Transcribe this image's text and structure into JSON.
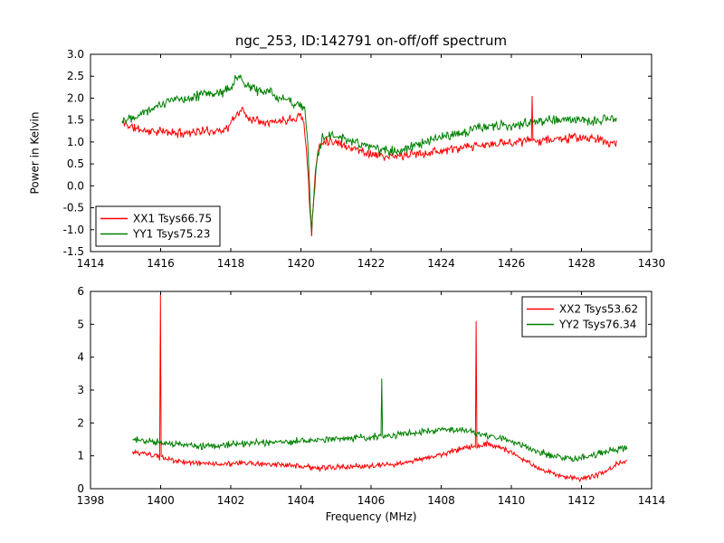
{
  "figure": {
    "background": "#ffffff",
    "frame_color": "#000000"
  },
  "chart_data": [
    {
      "type": "line",
      "title": "ngc_253, ID:142791 on-off/off spectrum",
      "xlabel": "",
      "ylabel": "Power in Kelvin",
      "xlim": [
        1414,
        1430
      ],
      "ylim": [
        -1.5,
        3.0
      ],
      "xticks": [
        1414,
        1416,
        1418,
        1420,
        1422,
        1424,
        1426,
        1428,
        1430
      ],
      "xtick_labels": [
        "1414",
        "1416",
        "1418",
        "1420",
        "1422",
        "1424",
        "1426",
        "1428",
        "1430"
      ],
      "yticks": [
        3.0,
        2.5,
        2.0,
        1.5,
        1.0,
        0.5,
        0.0,
        -0.5,
        -1.0,
        -1.5
      ],
      "ytick_labels": [
        "3.0",
        "2.5",
        "2.0",
        "1.5",
        "1.0",
        "0.5",
        "0.0",
        "-0.5",
        "-1.0",
        "-1.5"
      ],
      "legend_position": "lower left",
      "grid": false,
      "series": [
        {
          "name": "XX1 Tsys66.75",
          "color": "#ff0000",
          "noise": 0.07,
          "seed": 11,
          "points": 640,
          "anchors": [
            [
              1414.9,
              1.45
            ],
            [
              1415.2,
              1.33
            ],
            [
              1415.6,
              1.25
            ],
            [
              1416,
              1.24
            ],
            [
              1416.5,
              1.2
            ],
            [
              1417,
              1.24
            ],
            [
              1417.5,
              1.25
            ],
            [
              1417.9,
              1.3
            ],
            [
              1418.1,
              1.55
            ],
            [
              1418.3,
              1.75
            ],
            [
              1418.5,
              1.55
            ],
            [
              1418.8,
              1.5
            ],
            [
              1419.2,
              1.45
            ],
            [
              1419.5,
              1.5
            ],
            [
              1419.8,
              1.55
            ],
            [
              1420,
              1.62
            ],
            [
              1420.1,
              1.4
            ],
            [
              1420.2,
              0.3
            ],
            [
              1420.3,
              -1.15
            ],
            [
              1420.4,
              0.2
            ],
            [
              1420.5,
              0.9
            ],
            [
              1420.7,
              1.05
            ],
            [
              1421,
              1.0
            ],
            [
              1421.5,
              0.85
            ],
            [
              1422,
              0.73
            ],
            [
              1422.5,
              0.65
            ],
            [
              1423,
              0.7
            ],
            [
              1423.5,
              0.75
            ],
            [
              1424,
              0.8
            ],
            [
              1424.5,
              0.85
            ],
            [
              1425,
              0.9
            ],
            [
              1425.5,
              0.95
            ],
            [
              1426,
              1.0
            ],
            [
              1426.5,
              1.03
            ],
            [
              1427,
              1.05
            ],
            [
              1427.5,
              1.08
            ],
            [
              1428,
              1.1
            ],
            [
              1428.5,
              1.05
            ],
            [
              1429,
              0.95
            ]
          ],
          "spikes": [
            [
              1426.6,
              2.05
            ]
          ]
        },
        {
          "name": "YY1 Tsys75.23",
          "color": "#008000",
          "noise": 0.08,
          "seed": 22,
          "points": 640,
          "anchors": [
            [
              1414.9,
              1.5
            ],
            [
              1415.3,
              1.62
            ],
            [
              1415.7,
              1.75
            ],
            [
              1416,
              1.85
            ],
            [
              1416.3,
              1.95
            ],
            [
              1416.7,
              2.0
            ],
            [
              1417,
              2.05
            ],
            [
              1417.4,
              2.1
            ],
            [
              1417.8,
              2.15
            ],
            [
              1418,
              2.25
            ],
            [
              1418.2,
              2.5
            ],
            [
              1418.4,
              2.3
            ],
            [
              1418.7,
              2.2
            ],
            [
              1419,
              2.15
            ],
            [
              1419.3,
              2.05
            ],
            [
              1419.6,
              1.95
            ],
            [
              1419.9,
              1.88
            ],
            [
              1420.1,
              1.8
            ],
            [
              1420.2,
              0.9
            ],
            [
              1420.3,
              -1.05
            ],
            [
              1420.45,
              0.5
            ],
            [
              1420.6,
              1.1
            ],
            [
              1420.9,
              1.15
            ],
            [
              1421.3,
              1.05
            ],
            [
              1421.7,
              0.95
            ],
            [
              1422.1,
              0.85
            ],
            [
              1422.5,
              0.8
            ],
            [
              1423,
              0.85
            ],
            [
              1423.5,
              0.95
            ],
            [
              1424,
              1.1
            ],
            [
              1424.5,
              1.2
            ],
            [
              1425,
              1.3
            ],
            [
              1425.5,
              1.35
            ],
            [
              1426,
              1.4
            ],
            [
              1426.5,
              1.45
            ],
            [
              1427,
              1.5
            ],
            [
              1427.5,
              1.5
            ],
            [
              1428,
              1.48
            ],
            [
              1428.5,
              1.5
            ],
            [
              1429,
              1.55
            ]
          ],
          "spikes": []
        }
      ]
    },
    {
      "type": "line",
      "title": "",
      "xlabel": "Frequency (MHz)",
      "ylabel": "",
      "xlim": [
        1398,
        1414
      ],
      "ylim": [
        0,
        6
      ],
      "xticks": [
        1398,
        1400,
        1402,
        1404,
        1406,
        1408,
        1410,
        1412,
        1414
      ],
      "xtick_labels": [
        "1398",
        "1400",
        "1402",
        "1404",
        "1406",
        "1408",
        "1410",
        "1412",
        "1414"
      ],
      "yticks": [
        0,
        1,
        2,
        3,
        4,
        5,
        6
      ],
      "ytick_labels": [
        "0",
        "1",
        "2",
        "3",
        "4",
        "5",
        "6"
      ],
      "legend_position": "upper right",
      "grid": false,
      "series": [
        {
          "name": "XX2 Tsys53.62",
          "color": "#ff0000",
          "noise": 0.055,
          "seed": 33,
          "points": 640,
          "anchors": [
            [
              1399.2,
              1.1
            ],
            [
              1399.6,
              1.05
            ],
            [
              1400,
              0.95
            ],
            [
              1400.4,
              0.85
            ],
            [
              1400.8,
              0.8
            ],
            [
              1401.2,
              0.78
            ],
            [
              1401.6,
              0.75
            ],
            [
              1402,
              0.75
            ],
            [
              1402.5,
              0.78
            ],
            [
              1403,
              0.75
            ],
            [
              1403.5,
              0.7
            ],
            [
              1404,
              0.68
            ],
            [
              1404.5,
              0.62
            ],
            [
              1405,
              0.65
            ],
            [
              1405.5,
              0.68
            ],
            [
              1406,
              0.7
            ],
            [
              1406.5,
              0.72
            ],
            [
              1407,
              0.8
            ],
            [
              1407.5,
              0.9
            ],
            [
              1408,
              1.05
            ],
            [
              1408.5,
              1.2
            ],
            [
              1409,
              1.3
            ],
            [
              1409.3,
              1.35
            ],
            [
              1409.6,
              1.3
            ],
            [
              1410,
              1.1
            ],
            [
              1410.4,
              0.85
            ],
            [
              1410.8,
              0.6
            ],
            [
              1411.2,
              0.45
            ],
            [
              1411.6,
              0.35
            ],
            [
              1412,
              0.3
            ],
            [
              1412.4,
              0.4
            ],
            [
              1412.8,
              0.6
            ],
            [
              1413.1,
              0.8
            ],
            [
              1413.3,
              0.85
            ]
          ],
          "spikes": [
            [
              1400.0,
              5.9
            ],
            [
              1409.0,
              5.1
            ]
          ]
        },
        {
          "name": "YY2 Tsys76.34",
          "color": "#008000",
          "noise": 0.07,
          "seed": 44,
          "points": 640,
          "anchors": [
            [
              1399.2,
              1.5
            ],
            [
              1399.6,
              1.45
            ],
            [
              1400,
              1.4
            ],
            [
              1400.5,
              1.35
            ],
            [
              1401,
              1.3
            ],
            [
              1401.5,
              1.3
            ],
            [
              1402,
              1.33
            ],
            [
              1402.5,
              1.38
            ],
            [
              1403,
              1.4
            ],
            [
              1403.5,
              1.42
            ],
            [
              1404,
              1.45
            ],
            [
              1404.5,
              1.5
            ],
            [
              1405,
              1.52
            ],
            [
              1405.5,
              1.55
            ],
            [
              1406,
              1.58
            ],
            [
              1406.5,
              1.6
            ],
            [
              1407,
              1.68
            ],
            [
              1407.5,
              1.75
            ],
            [
              1408,
              1.78
            ],
            [
              1408.3,
              1.8
            ],
            [
              1408.7,
              1.75
            ],
            [
              1409,
              1.7
            ],
            [
              1409.4,
              1.6
            ],
            [
              1409.8,
              1.5
            ],
            [
              1410.2,
              1.35
            ],
            [
              1410.6,
              1.2
            ],
            [
              1411,
              1.05
            ],
            [
              1411.4,
              0.95
            ],
            [
              1411.8,
              0.9
            ],
            [
              1412.2,
              1.0
            ],
            [
              1412.6,
              1.1
            ],
            [
              1413,
              1.2
            ],
            [
              1413.3,
              1.25
            ]
          ],
          "spikes": [
            [
              1406.3,
              3.35
            ]
          ]
        }
      ]
    }
  ]
}
